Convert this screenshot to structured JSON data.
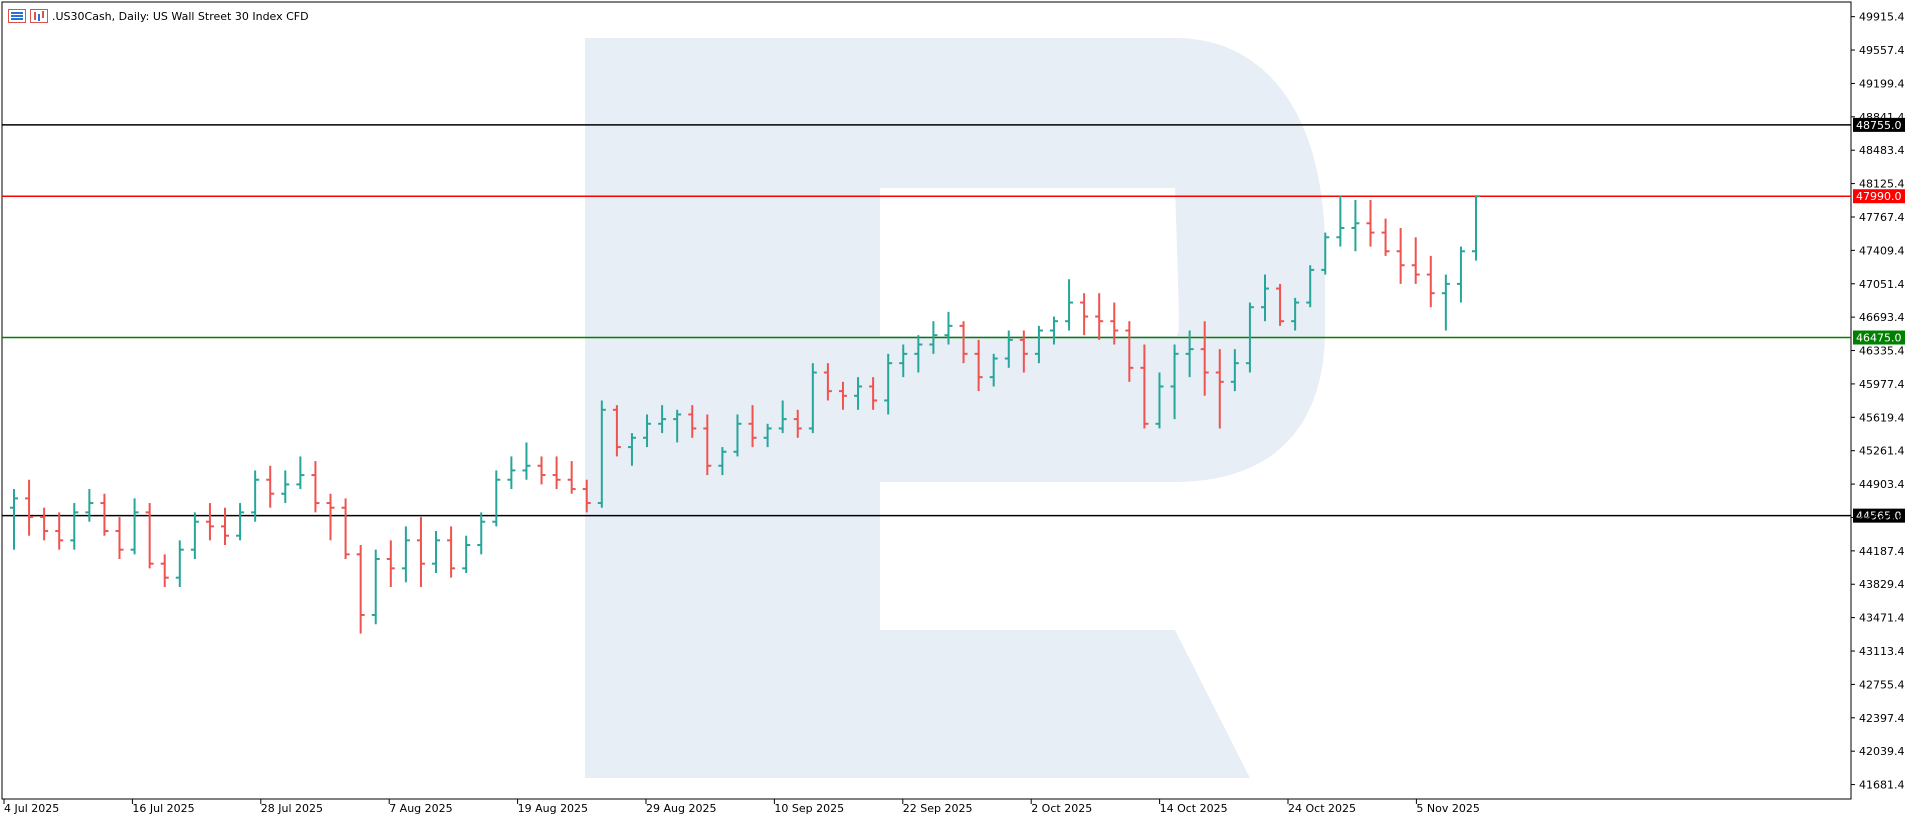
{
  "header": {
    "symbol_title": ".US30Cash, Daily:  US Wall Street 30 Index CFD"
  },
  "icons": [
    "chart-list-icon",
    "bar-chart-icon"
  ],
  "colors": {
    "bull": "#26a69a",
    "bear": "#ef5350",
    "resistance_upper": "#000000",
    "resistance_red": "#ff0000",
    "support_green": "#008000",
    "support_lower": "#000000",
    "watermark": "#e8eef5"
  },
  "chart_data": {
    "type": "ohlc",
    "title": ".US30Cash, Daily:  US Wall Street 30 Index CFD",
    "ylim": [
      41323,
      50094
    ],
    "y_ticks": [
      "49915.4",
      "49557.4",
      "49199.4",
      "48841.4",
      "48483.4",
      "48125.4",
      "47767.4",
      "47409.4",
      "47051.4",
      "46693.4",
      "46335.4",
      "45977.4",
      "45619.4",
      "45261.4",
      "44903.4",
      "44545.4",
      "44187.4",
      "43829.4",
      "43471.4",
      "43113.4",
      "42755.4",
      "42397.4",
      "42039.4",
      "41681.4"
    ],
    "x_labels": [
      "4 Jul 2025",
      "16 Jul 2025",
      "28 Jul 2025",
      "7 Aug 2025",
      "19 Aug 2025",
      "29 Aug 2025",
      "10 Sep 2025",
      "22 Sep 2025",
      "2 Oct 2025",
      "14 Oct 2025",
      "24 Oct 2025",
      "5 Nov 2025"
    ],
    "levels": [
      {
        "label": "48755.0",
        "value": 48755.0,
        "color": "#000000"
      },
      {
        "label": "47990.0",
        "value": 47990.0,
        "color": "#ff0000"
      },
      {
        "label": "46475.0",
        "value": 46475.0,
        "color": "#008000"
      },
      {
        "label": "44565.0",
        "value": 44565.0,
        "color": "#000000"
      }
    ],
    "candles": [
      [
        44650,
        44850,
        44200,
        44750
      ],
      [
        44750,
        44950,
        44350,
        44550
      ],
      [
        44550,
        44650,
        44300,
        44400
      ],
      [
        44400,
        44600,
        44200,
        44300
      ],
      [
        44300,
        44700,
        44200,
        44600
      ],
      [
        44600,
        44850,
        44500,
        44700
      ],
      [
        44700,
        44800,
        44350,
        44400
      ],
      [
        44400,
        44550,
        44100,
        44200
      ],
      [
        44200,
        44750,
        44150,
        44600
      ],
      [
        44600,
        44700,
        44000,
        44050
      ],
      [
        44050,
        44150,
        43800,
        43900
      ],
      [
        43900,
        44300,
        43800,
        44200
      ],
      [
        44200,
        44600,
        44100,
        44500
      ],
      [
        44500,
        44700,
        44300,
        44450
      ],
      [
        44450,
        44650,
        44250,
        44350
      ],
      [
        44350,
        44700,
        44300,
        44600
      ],
      [
        44600,
        45050,
        44500,
        44950
      ],
      [
        44950,
        45100,
        44650,
        44800
      ],
      [
        44800,
        45050,
        44700,
        44900
      ],
      [
        44900,
        45200,
        44850,
        45000
      ],
      [
        45000,
        45150,
        44600,
        44700
      ],
      [
        44700,
        44800,
        44300,
        44650
      ],
      [
        44650,
        44750,
        44100,
        44150
      ],
      [
        44150,
        44250,
        43300,
        43500
      ],
      [
        43500,
        44200,
        43400,
        44100
      ],
      [
        44100,
        44300,
        43800,
        44000
      ],
      [
        44000,
        44450,
        43850,
        44300
      ],
      [
        44300,
        44550,
        43800,
        44050
      ],
      [
        44050,
        44400,
        43950,
        44300
      ],
      [
        44300,
        44450,
        43900,
        44000
      ],
      [
        44000,
        44350,
        43950,
        44250
      ],
      [
        44250,
        44600,
        44150,
        44500
      ],
      [
        44500,
        45050,
        44450,
        44950
      ],
      [
        44950,
        45200,
        44850,
        45050
      ],
      [
        45050,
        45350,
        44950,
        45100
      ],
      [
        45100,
        45200,
        44900,
        45000
      ],
      [
        45000,
        45200,
        44850,
        44950
      ],
      [
        44950,
        45150,
        44800,
        44850
      ],
      [
        44850,
        44950,
        44600,
        44700
      ],
      [
        44700,
        45800,
        44650,
        45700
      ],
      [
        45700,
        45750,
        45200,
        45300
      ],
      [
        45300,
        45450,
        45100,
        45400
      ],
      [
        45400,
        45650,
        45300,
        45550
      ],
      [
        45550,
        45750,
        45450,
        45600
      ],
      [
        45600,
        45700,
        45350,
        45650
      ],
      [
        45650,
        45750,
        45400,
        45500
      ],
      [
        45500,
        45650,
        45000,
        45100
      ],
      [
        45100,
        45300,
        45000,
        45250
      ],
      [
        45250,
        45650,
        45200,
        45550
      ],
      [
        45550,
        45750,
        45300,
        45400
      ],
      [
        45400,
        45550,
        45300,
        45500
      ],
      [
        45500,
        45800,
        45450,
        45600
      ],
      [
        45600,
        45700,
        45400,
        45500
      ],
      [
        45500,
        46200,
        45450,
        46100
      ],
      [
        46100,
        46200,
        45800,
        45900
      ],
      [
        45900,
        46000,
        45700,
        45850
      ],
      [
        45850,
        46050,
        45700,
        45950
      ],
      [
        45950,
        46050,
        45700,
        45800
      ],
      [
        45800,
        46300,
        45650,
        46200
      ],
      [
        46200,
        46400,
        46050,
        46300
      ],
      [
        46300,
        46500,
        46100,
        46400
      ],
      [
        46400,
        46650,
        46300,
        46500
      ],
      [
        46500,
        46750,
        46400,
        46600
      ],
      [
        46600,
        46650,
        46200,
        46300
      ],
      [
        46300,
        46450,
        45900,
        46050
      ],
      [
        46050,
        46300,
        45950,
        46250
      ],
      [
        46250,
        46550,
        46150,
        46450
      ],
      [
        46450,
        46550,
        46100,
        46300
      ],
      [
        46300,
        46600,
        46200,
        46550
      ],
      [
        46550,
        46700,
        46400,
        46650
      ],
      [
        46650,
        47100,
        46550,
        46850
      ],
      [
        46850,
        46950,
        46500,
        46700
      ],
      [
        46700,
        46950,
        46450,
        46650
      ],
      [
        46650,
        46850,
        46400,
        46550
      ],
      [
        46550,
        46650,
        46000,
        46150
      ],
      [
        46150,
        46400,
        45500,
        45550
      ],
      [
        45550,
        46100,
        45500,
        45950
      ],
      [
        45950,
        46400,
        45600,
        46300
      ],
      [
        46300,
        46550,
        46050,
        46350
      ],
      [
        46350,
        46650,
        45850,
        46100
      ],
      [
        46100,
        46350,
        45500,
        46000
      ],
      [
        46000,
        46350,
        45900,
        46200
      ],
      [
        46200,
        46850,
        46100,
        46800
      ],
      [
        46800,
        47150,
        46650,
        47000
      ],
      [
        47000,
        47050,
        46600,
        46650
      ],
      [
        46650,
        46900,
        46550,
        46850
      ],
      [
        46850,
        47250,
        46800,
        47200
      ],
      [
        47200,
        47600,
        47150,
        47550
      ],
      [
        47550,
        48000,
        47450,
        47650
      ],
      [
        47650,
        47950,
        47400,
        47700
      ],
      [
        47700,
        47950,
        47450,
        47600
      ],
      [
        47600,
        47750,
        47350,
        47400
      ],
      [
        47400,
        47650,
        47050,
        47250
      ],
      [
        47250,
        47550,
        47050,
        47150
      ],
      [
        47150,
        47350,
        46800,
        46950
      ],
      [
        46950,
        47150,
        46550,
        47050
      ],
      [
        47050,
        47450,
        46850,
        47400
      ],
      [
        47400,
        48000,
        47300,
        47990
      ]
    ]
  }
}
